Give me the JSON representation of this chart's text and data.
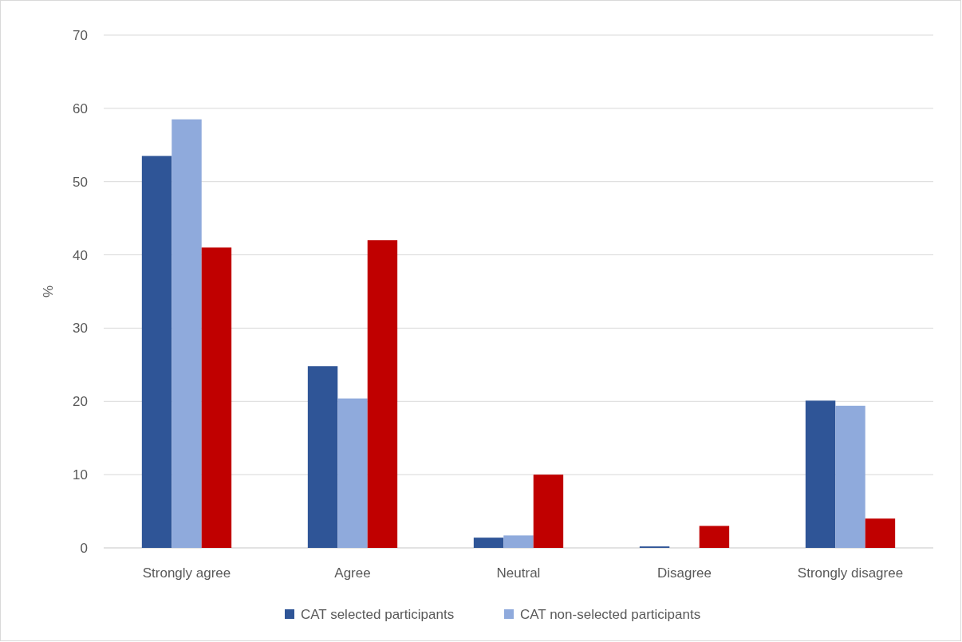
{
  "chart_data": {
    "type": "bar",
    "ylabel": "%",
    "categories": [
      "Strongly agree",
      "Agree",
      "Neutral",
      "Disagree",
      "Strongly disagree"
    ],
    "series": [
      {
        "name": "CAT selected participants",
        "color": "#2f5597",
        "values": [
          53.5,
          24.8,
          1.4,
          0.2,
          20.1
        ]
      },
      {
        "name": "CAT non-selected participants",
        "color": "#8faadc",
        "values": [
          58.5,
          20.4,
          1.7,
          0,
          19.4
        ]
      },
      {
        "color": "#c00000",
        "values": [
          41,
          42,
          10,
          3,
          4
        ]
      }
    ],
    "ylim": [
      0,
      70
    ],
    "yticks": [
      0,
      10,
      20,
      30,
      40,
      50,
      60,
      70
    ],
    "grid": "y",
    "legend": "bottom"
  }
}
